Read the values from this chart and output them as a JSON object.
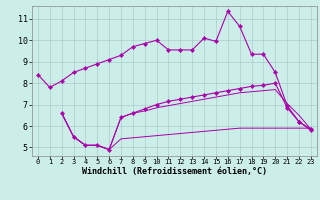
{
  "xlabel": "Windchill (Refroidissement éolien,°C)",
  "bg_color": "#cceee8",
  "grid_color": "#aacccc",
  "line_color": "#aa00aa",
  "xlim": [
    -0.5,
    23.5
  ],
  "ylim": [
    4.6,
    11.6
  ],
  "xticks": [
    0,
    1,
    2,
    3,
    4,
    5,
    6,
    7,
    8,
    9,
    10,
    11,
    12,
    13,
    14,
    15,
    16,
    17,
    18,
    19,
    20,
    21,
    22,
    23
  ],
  "yticks": [
    5,
    6,
    7,
    8,
    9,
    10,
    11
  ],
  "series": {
    "line1_x": [
      0,
      1,
      2,
      3,
      4,
      5,
      6,
      7,
      8,
      9,
      10,
      11,
      12,
      13,
      14,
      15,
      16,
      17,
      18,
      19,
      20,
      21,
      22,
      23
    ],
    "line1_y": [
      8.4,
      7.8,
      8.1,
      8.5,
      8.7,
      8.9,
      9.1,
      9.3,
      9.7,
      9.85,
      10.0,
      9.55,
      9.55,
      9.55,
      10.1,
      9.95,
      11.35,
      10.65,
      9.35,
      9.35,
      8.5,
      6.95,
      6.2,
      5.8
    ],
    "line2_x": [
      2,
      3,
      4,
      5,
      6,
      7,
      8,
      9,
      10,
      11,
      12,
      13,
      14,
      15,
      16,
      17,
      18,
      19,
      20,
      21,
      22,
      23
    ],
    "line2_y": [
      6.6,
      5.5,
      5.1,
      5.1,
      4.9,
      6.4,
      6.6,
      6.8,
      7.0,
      7.15,
      7.25,
      7.35,
      7.45,
      7.55,
      7.65,
      7.75,
      7.85,
      7.9,
      8.0,
      6.85,
      6.2,
      5.85
    ],
    "line3_x": [
      2,
      3,
      4,
      5,
      6,
      7,
      8,
      9,
      10,
      11,
      12,
      13,
      14,
      15,
      16,
      17,
      18,
      19,
      20,
      21,
      22,
      23
    ],
    "line3_y": [
      6.6,
      5.5,
      5.1,
      5.1,
      4.9,
      5.4,
      5.45,
      5.5,
      5.55,
      5.6,
      5.65,
      5.7,
      5.75,
      5.8,
      5.85,
      5.9,
      5.9,
      5.9,
      5.9,
      5.9,
      5.9,
      5.9
    ],
    "line4_x": [
      2,
      3,
      4,
      5,
      6,
      7,
      8,
      9,
      10,
      11,
      12,
      13,
      14,
      15,
      16,
      17,
      18,
      19,
      20,
      21,
      22,
      23
    ],
    "line4_y": [
      6.6,
      5.5,
      5.1,
      5.1,
      4.9,
      6.4,
      6.6,
      6.7,
      6.85,
      6.95,
      7.05,
      7.15,
      7.25,
      7.35,
      7.45,
      7.55,
      7.6,
      7.65,
      7.7,
      7.05,
      6.5,
      5.85
    ]
  }
}
